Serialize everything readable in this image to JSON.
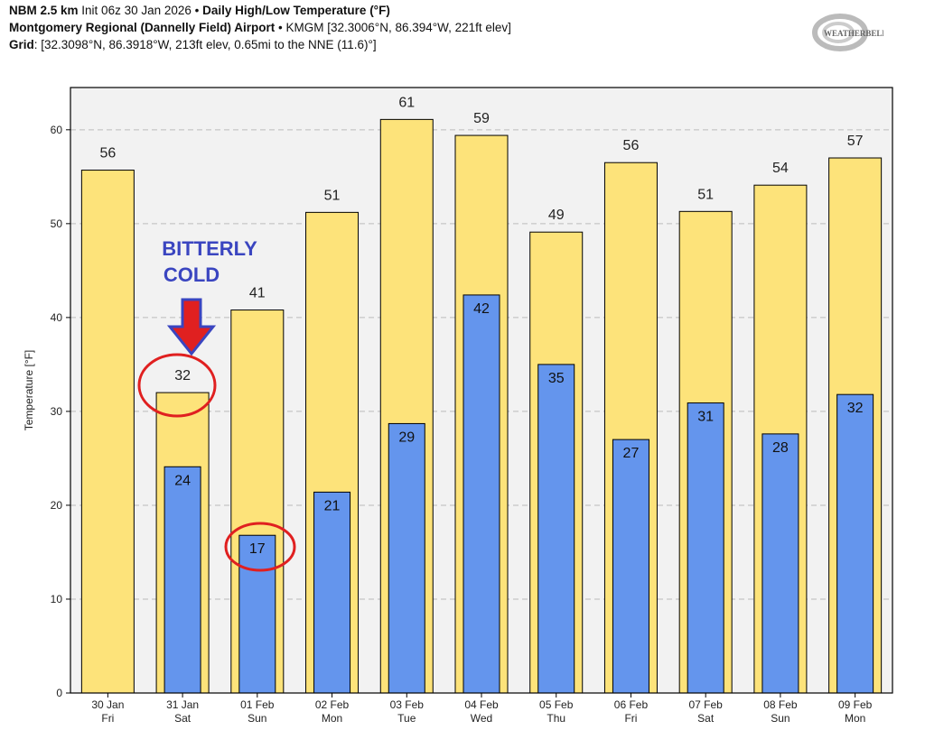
{
  "header": {
    "line1_bold": "NBM 2.5 km",
    "line1_init": "Init 06z 30 Jan 2026",
    "line1_sep": "•",
    "line1_title": "Daily High/Low Temperature (°F)",
    "line2_bold": "Montgomery Regional (Dannelly Field) Airport",
    "line2_rest": "• KMGM [32.3006°N, 86.394°W, 221ft elev]",
    "line3_bold": "Grid",
    "line3_rest": ": [32.3098°N, 86.3918°W, 213ft elev, 0.65mi to the NNE (11.6)°]"
  },
  "logo": {
    "text": "WEATHERBELL"
  },
  "annotation": {
    "text_line1": "BITTERLY",
    "text_line2": "COLD",
    "text_color": "#3a45c0",
    "arrow_color": "#e02020",
    "circle_color": "#e02020"
  },
  "chart_data": {
    "type": "bar",
    "ylabel": "Temperature [°F]",
    "ylim": [
      0,
      64.5
    ],
    "yticks": [
      0,
      10,
      20,
      30,
      40,
      50,
      60
    ],
    "grid": true,
    "categories": [
      "30 Jan|Fri",
      "31 Jan|Sat",
      "01 Feb|Sun",
      "02 Feb|Mon",
      "03 Feb|Tue",
      "04 Feb|Wed",
      "05 Feb|Thu",
      "06 Feb|Fri",
      "07 Feb|Sat",
      "08 Feb|Sun",
      "09 Feb|Mon"
    ],
    "series": [
      {
        "name": "High",
        "color": "#fde37a",
        "values": [
          55.7,
          32,
          40.8,
          51.2,
          61.1,
          59.4,
          49.1,
          56.5,
          51.3,
          54.1,
          57
        ],
        "labels": [
          "56",
          "32",
          "41",
          "51",
          "61",
          "59",
          "49",
          "56",
          "51",
          "54",
          "57"
        ]
      },
      {
        "name": "Low",
        "color": "#6495ed",
        "values": [
          null,
          24.1,
          16.8,
          21.4,
          28.7,
          42.4,
          35,
          27,
          30.9,
          27.6,
          31.8
        ],
        "labels": [
          "",
          "24",
          "17",
          "21",
          "29",
          "42",
          "35",
          "27",
          "31",
          "28",
          "32"
        ]
      }
    ]
  }
}
